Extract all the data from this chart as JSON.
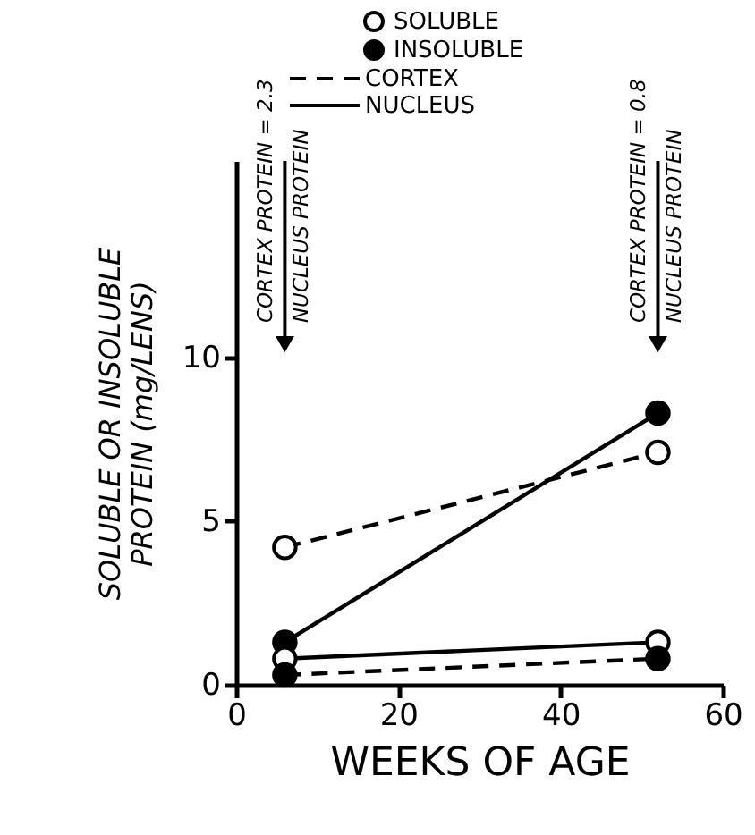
{
  "chart_data": {
    "type": "line",
    "xlabel": "WEEKS OF AGE",
    "ylabel": "SOLUBLE OR INSOLUBLE\nPROTEIN (mg/LENS)",
    "xlim": [
      0,
      60
    ],
    "xticks": [
      0,
      20,
      40,
      60
    ],
    "ylim": [
      0,
      16
    ],
    "yticks": [
      0,
      5,
      10
    ],
    "grid": false,
    "marker": "circle",
    "x": [
      6,
      52
    ],
    "series": [
      {
        "color": "#000000",
        "colors": [
          "#ffffff",
          "#ffffff"
        ],
        "line_style": "dashed",
        "values": [
          4.2,
          7.1
        ]
      },
      {
        "color": "#000000",
        "line_style": "solid",
        "values": [
          1.3,
          8.3
        ]
      },
      {
        "color": "#000000",
        "colors": [
          "#ffffff",
          "#ffffff"
        ],
        "line_style": "solid",
        "values": [
          0.8,
          1.3
        ]
      },
      {
        "color": "#000000",
        "line_style": "dashed",
        "values": [
          0.3,
          0.8
        ]
      }
    ],
    "annotations": [
      "SOLUBLE",
      "INSOLUBLE",
      "CORTEX",
      "NUCLEUS",
      "CORTEX PROTEIN = 2.3\nNUCLEUS PROTEIN",
      "CORTEX PROTEIN = 0.8\nNUCLEUS PROTEIN"
    ]
  }
}
